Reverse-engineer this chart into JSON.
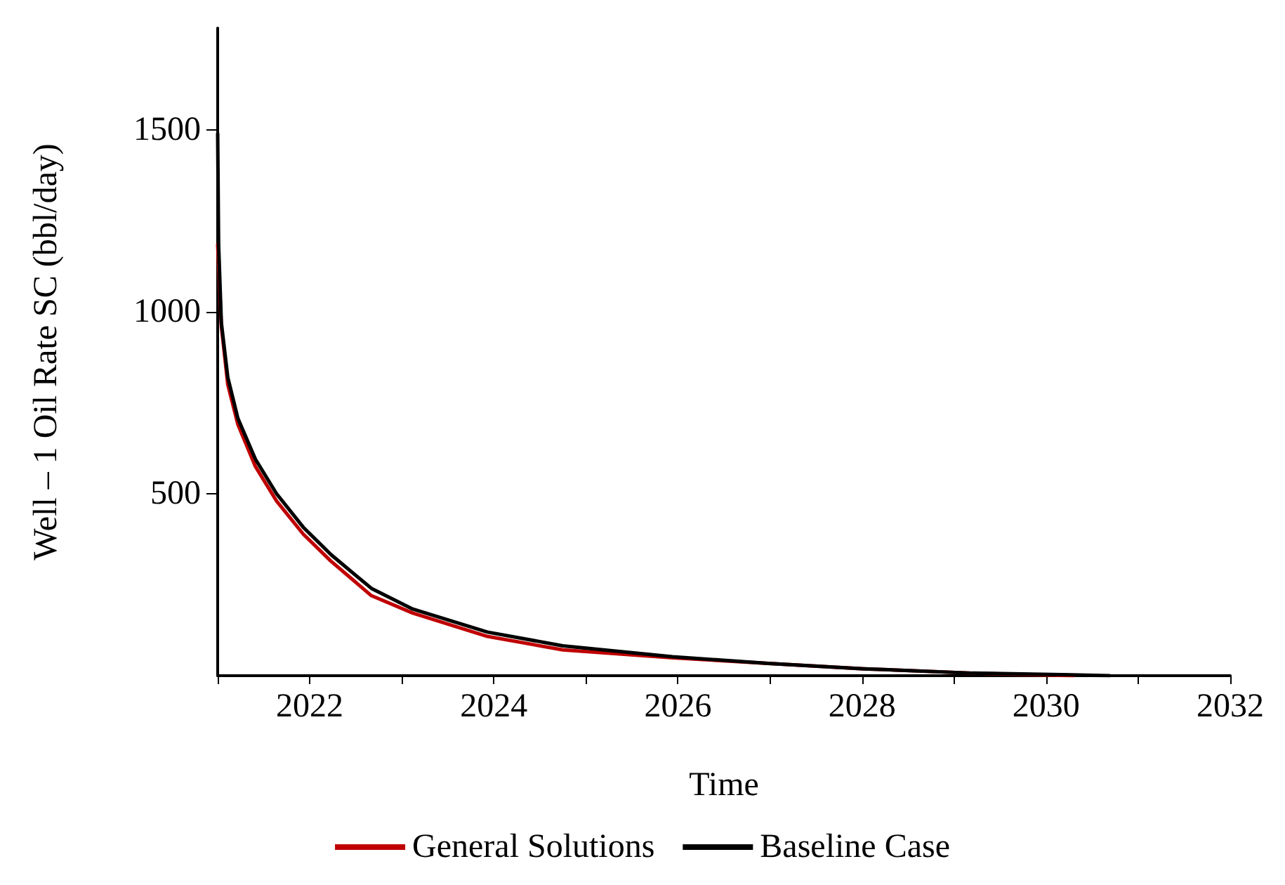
{
  "chart_data": {
    "type": "line",
    "xlabel": "Time",
    "ylabel": "Well – 1 Oil Rate SC (bbl/day)",
    "xlim": [
      2021,
      2032
    ],
    "xticks": [
      {
        "value": 2021,
        "label": null
      },
      2022,
      {
        "value": 2023,
        "label": null
      },
      2024,
      {
        "value": 2025,
        "label": null
      },
      2026,
      {
        "value": 2027,
        "label": null
      },
      2028,
      {
        "value": 2029,
        "label": null
      },
      2030,
      {
        "value": 2031,
        "label": null
      },
      2032
    ],
    "ylim": [
      0,
      1780
    ],
    "yticks": [
      500,
      1000,
      1500
    ],
    "grid": false,
    "legend": "bottom",
    "marker": "none",
    "line_style": "solid",
    "series": [
      {
        "name": "General Solutions",
        "color": "#c00000",
        "x": [
          2021.0,
          2021.04,
          2021.11,
          2021.22,
          2021.41,
          2021.64,
          2021.93,
          2022.23,
          2022.67,
          2023.12,
          2023.93,
          2024.75,
          2025.94,
          2026.98,
          2028.02,
          2029.2,
          2030.3
        ],
        "values": [
          1185,
          960,
          800,
          690,
          575,
          480,
          389,
          315,
          220,
          172,
          108,
          71,
          49,
          34,
          19,
          7,
          0
        ]
      },
      {
        "name": "Baseline Case",
        "color": "#000000",
        "x": [
          2021.0,
          2021.01,
          2021.04,
          2021.11,
          2021.22,
          2021.41,
          2021.64,
          2021.93,
          2022.23,
          2022.67,
          2023.12,
          2023.93,
          2024.75,
          2025.94,
          2026.98,
          2028.02,
          2029.2,
          2029.95,
          2030.69
        ],
        "values": [
          1490,
          1185,
          970,
          820,
          707,
          595,
          500,
          408,
          333,
          240,
          183,
          120,
          82,
          52,
          34,
          19,
          7,
          4,
          0
        ]
      }
    ]
  }
}
